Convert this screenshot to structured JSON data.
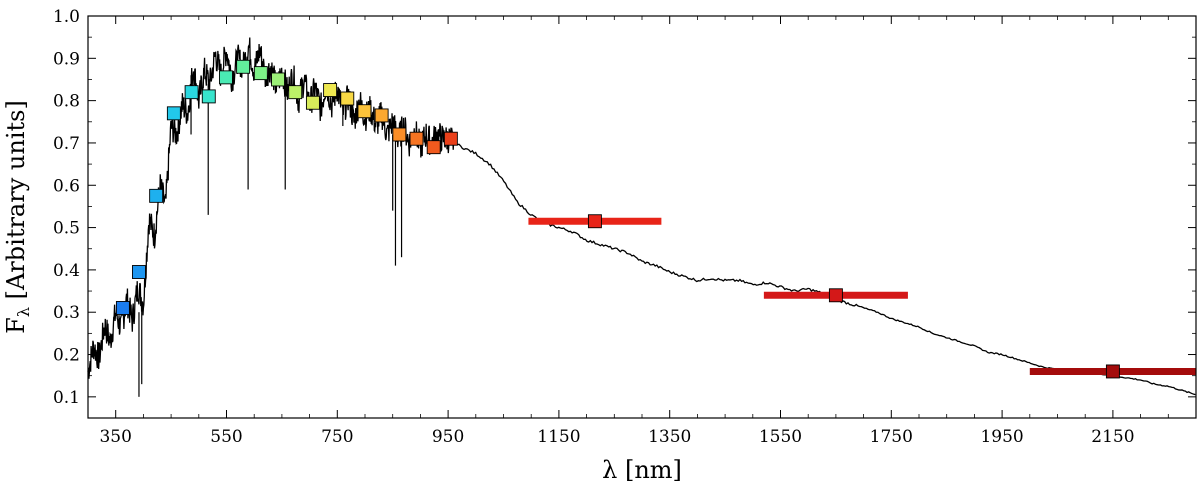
{
  "chart_data": {
    "type": "line",
    "xlabel": "λ [nm]",
    "ylabel_main": "F",
    "ylabel_sub": "λ",
    "ylabel_rest": " [Arbitrary units]",
    "xlim": [
      300,
      2300
    ],
    "ylim": [
      0.05,
      1.0
    ],
    "xticks": [
      350,
      550,
      750,
      950,
      1150,
      1350,
      1550,
      1750,
      1950,
      2150
    ],
    "yticks": [
      0.1,
      0.2,
      0.3,
      0.4,
      0.5,
      0.6,
      0.7,
      0.8,
      0.9,
      1.0
    ],
    "spectrum_color": "#000000",
    "spectrum": {
      "x": [
        300,
        310,
        320,
        330,
        340,
        350,
        360,
        370,
        380,
        390,
        400,
        410,
        420,
        430,
        440,
        450,
        460,
        470,
        480,
        490,
        500,
        510,
        520,
        530,
        540,
        550,
        560,
        570,
        580,
        590,
        600,
        610,
        620,
        630,
        640,
        650,
        660,
        670,
        680,
        690,
        700,
        710,
        720,
        730,
        740,
        750,
        760,
        770,
        780,
        790,
        800,
        810,
        820,
        830,
        840,
        850,
        860,
        870,
        880,
        890,
        900,
        910,
        920,
        930,
        940,
        950,
        975,
        1000,
        1025,
        1050,
        1075,
        1100,
        1125,
        1150,
        1175,
        1200,
        1225,
        1250,
        1275,
        1300,
        1325,
        1350,
        1375,
        1400,
        1425,
        1450,
        1475,
        1500,
        1525,
        1550,
        1575,
        1600,
        1625,
        1650,
        1675,
        1700,
        1725,
        1750,
        1775,
        1800,
        1825,
        1850,
        1875,
        1900,
        1925,
        1950,
        1975,
        2000,
        2025,
        2050,
        2075,
        2100,
        2125,
        2150,
        2175,
        2200,
        2225,
        2250,
        2275,
        2300
      ],
      "y": [
        0.16,
        0.22,
        0.19,
        0.27,
        0.23,
        0.3,
        0.26,
        0.33,
        0.28,
        0.36,
        0.32,
        0.52,
        0.48,
        0.6,
        0.55,
        0.74,
        0.72,
        0.79,
        0.77,
        0.88,
        0.8,
        0.87,
        0.84,
        0.91,
        0.86,
        0.92,
        0.85,
        0.9,
        0.88,
        0.93,
        0.87,
        0.92,
        0.86,
        0.88,
        0.83,
        0.87,
        0.82,
        0.86,
        0.8,
        0.85,
        0.79,
        0.83,
        0.78,
        0.84,
        0.79,
        0.83,
        0.77,
        0.81,
        0.75,
        0.8,
        0.76,
        0.78,
        0.74,
        0.77,
        0.72,
        0.75,
        0.71,
        0.74,
        0.7,
        0.73,
        0.69,
        0.72,
        0.7,
        0.72,
        0.71,
        0.71,
        0.69,
        0.675,
        0.65,
        0.61,
        0.56,
        0.53,
        0.51,
        0.5,
        0.49,
        0.47,
        0.46,
        0.45,
        0.44,
        0.42,
        0.41,
        0.395,
        0.385,
        0.375,
        0.38,
        0.375,
        0.375,
        0.365,
        0.37,
        0.36,
        0.35,
        0.355,
        0.345,
        0.33,
        0.32,
        0.31,
        0.3,
        0.285,
        0.275,
        0.265,
        0.25,
        0.24,
        0.23,
        0.22,
        0.205,
        0.2,
        0.19,
        0.18,
        0.17,
        0.165,
        0.16,
        0.16,
        0.155,
        0.15,
        0.145,
        0.14,
        0.13,
        0.125,
        0.115,
        0.105
      ]
    },
    "absorption_lines": [
      {
        "x": 392,
        "y_top": 0.3,
        "y_bottom": 0.1
      },
      {
        "x": 397,
        "y_top": 0.32,
        "y_bottom": 0.13
      },
      {
        "x": 486,
        "y_top": 0.86,
        "y_bottom": 0.72
      },
      {
        "x": 517,
        "y_top": 0.84,
        "y_bottom": 0.53
      },
      {
        "x": 589,
        "y_top": 0.88,
        "y_bottom": 0.59
      },
      {
        "x": 656,
        "y_top": 0.85,
        "y_bottom": 0.59
      },
      {
        "x": 760,
        "y_top": 0.8,
        "y_bottom": 0.74
      },
      {
        "x": 850,
        "y_top": 0.72,
        "y_bottom": 0.54
      },
      {
        "x": 855,
        "y_top": 0.74,
        "y_bottom": 0.41
      },
      {
        "x": 866,
        "y_top": 0.72,
        "y_bottom": 0.43
      }
    ],
    "photometry": [
      {
        "x": 363,
        "y": 0.31,
        "color": "#1a7cf0",
        "xerr": 0
      },
      {
        "x": 392,
        "y": 0.395,
        "color": "#1e96f0",
        "xerr": 0
      },
      {
        "x": 423,
        "y": 0.575,
        "color": "#1eb0ee",
        "xerr": 0
      },
      {
        "x": 455,
        "y": 0.77,
        "color": "#22c8ea",
        "xerr": 0
      },
      {
        "x": 487,
        "y": 0.82,
        "color": "#2ad8e0",
        "xerr": 0
      },
      {
        "x": 518,
        "y": 0.81,
        "color": "#38e4cc",
        "xerr": 0
      },
      {
        "x": 549,
        "y": 0.855,
        "color": "#4aeab4",
        "xerr": 0
      },
      {
        "x": 580,
        "y": 0.88,
        "color": "#62ee9c",
        "xerr": 0
      },
      {
        "x": 612,
        "y": 0.865,
        "color": "#7ef088",
        "xerr": 0
      },
      {
        "x": 643,
        "y": 0.85,
        "color": "#9cf078",
        "xerr": 0
      },
      {
        "x": 674,
        "y": 0.82,
        "color": "#bcf068",
        "xerr": 0
      },
      {
        "x": 706,
        "y": 0.795,
        "color": "#d8ec5a",
        "xerr": 0
      },
      {
        "x": 737,
        "y": 0.825,
        "color": "#eee850",
        "xerr": 0
      },
      {
        "x": 768,
        "y": 0.805,
        "color": "#f8d844",
        "xerr": 0
      },
      {
        "x": 799,
        "y": 0.775,
        "color": "#fcc23a",
        "xerr": 0
      },
      {
        "x": 830,
        "y": 0.765,
        "color": "#fca830",
        "xerr": 0
      },
      {
        "x": 862,
        "y": 0.72,
        "color": "#fa8e28",
        "xerr": 0
      },
      {
        "x": 893,
        "y": 0.71,
        "color": "#f67422",
        "xerr": 0
      },
      {
        "x": 924,
        "y": 0.69,
        "color": "#f05a1e",
        "xerr": 0
      },
      {
        "x": 955,
        "y": 0.71,
        "color": "#ea401a",
        "xerr": 0
      },
      {
        "x": 1215,
        "y": 0.515,
        "color": "#e82418",
        "xerr": 120
      },
      {
        "x": 1650,
        "y": 0.34,
        "color": "#d41818",
        "xerr": 130
      },
      {
        "x": 2150,
        "y": 0.16,
        "color": "#a40c0c",
        "xerr": 150
      }
    ]
  }
}
